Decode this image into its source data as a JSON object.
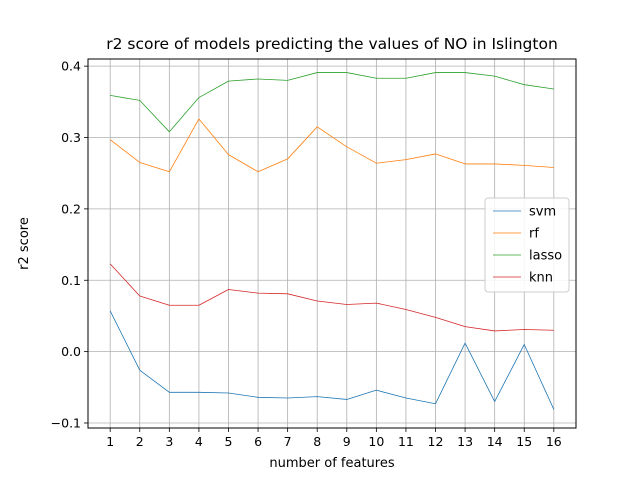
{
  "chart_data": {
    "type": "line",
    "title": "r2 score of models predicting the values of NO in Islington",
    "xlabel": "number of features",
    "ylabel": "r2 score",
    "x": [
      1,
      2,
      3,
      4,
      5,
      6,
      7,
      8,
      9,
      10,
      11,
      12,
      13,
      14,
      15,
      16
    ],
    "xticks": [
      "1",
      "2",
      "3",
      "4",
      "5",
      "6",
      "7",
      "8",
      "9",
      "10",
      "11",
      "12",
      "13",
      "14",
      "15",
      "16"
    ],
    "yticks": [
      "−0.1",
      "0.0",
      "0.1",
      "0.2",
      "0.3",
      "0.4"
    ],
    "ytick_values": [
      -0.1,
      0.0,
      0.1,
      0.2,
      0.3,
      0.4
    ],
    "xlim": [
      0.25,
      16.75
    ],
    "ylim": [
      -0.107,
      0.41
    ],
    "grid": true,
    "legend_position": "center-right",
    "series": [
      {
        "name": "svm",
        "color": "#1f77b4",
        "values": [
          0.057,
          -0.026,
          -0.057,
          -0.057,
          -0.058,
          -0.064,
          -0.065,
          -0.063,
          -0.067,
          -0.054,
          -0.065,
          -0.073,
          0.012,
          -0.07,
          0.01,
          -0.081
        ]
      },
      {
        "name": "rf",
        "color": "#ff7f0e",
        "values": [
          0.297,
          0.265,
          0.252,
          0.326,
          0.276,
          0.252,
          0.27,
          0.315,
          0.287,
          0.264,
          0.269,
          0.277,
          0.263,
          0.263,
          0.261,
          0.258
        ]
      },
      {
        "name": "lasso",
        "color": "#2ca02c",
        "values": [
          0.359,
          0.352,
          0.308,
          0.356,
          0.379,
          0.382,
          0.38,
          0.391,
          0.391,
          0.383,
          0.383,
          0.391,
          0.391,
          0.386,
          0.374,
          0.368
        ]
      },
      {
        "name": "knn",
        "color": "#d62728",
        "values": [
          0.123,
          0.078,
          0.065,
          0.065,
          0.087,
          0.082,
          0.081,
          0.071,
          0.066,
          0.068,
          0.059,
          0.048,
          0.035,
          0.029,
          0.031,
          0.03
        ]
      }
    ]
  }
}
